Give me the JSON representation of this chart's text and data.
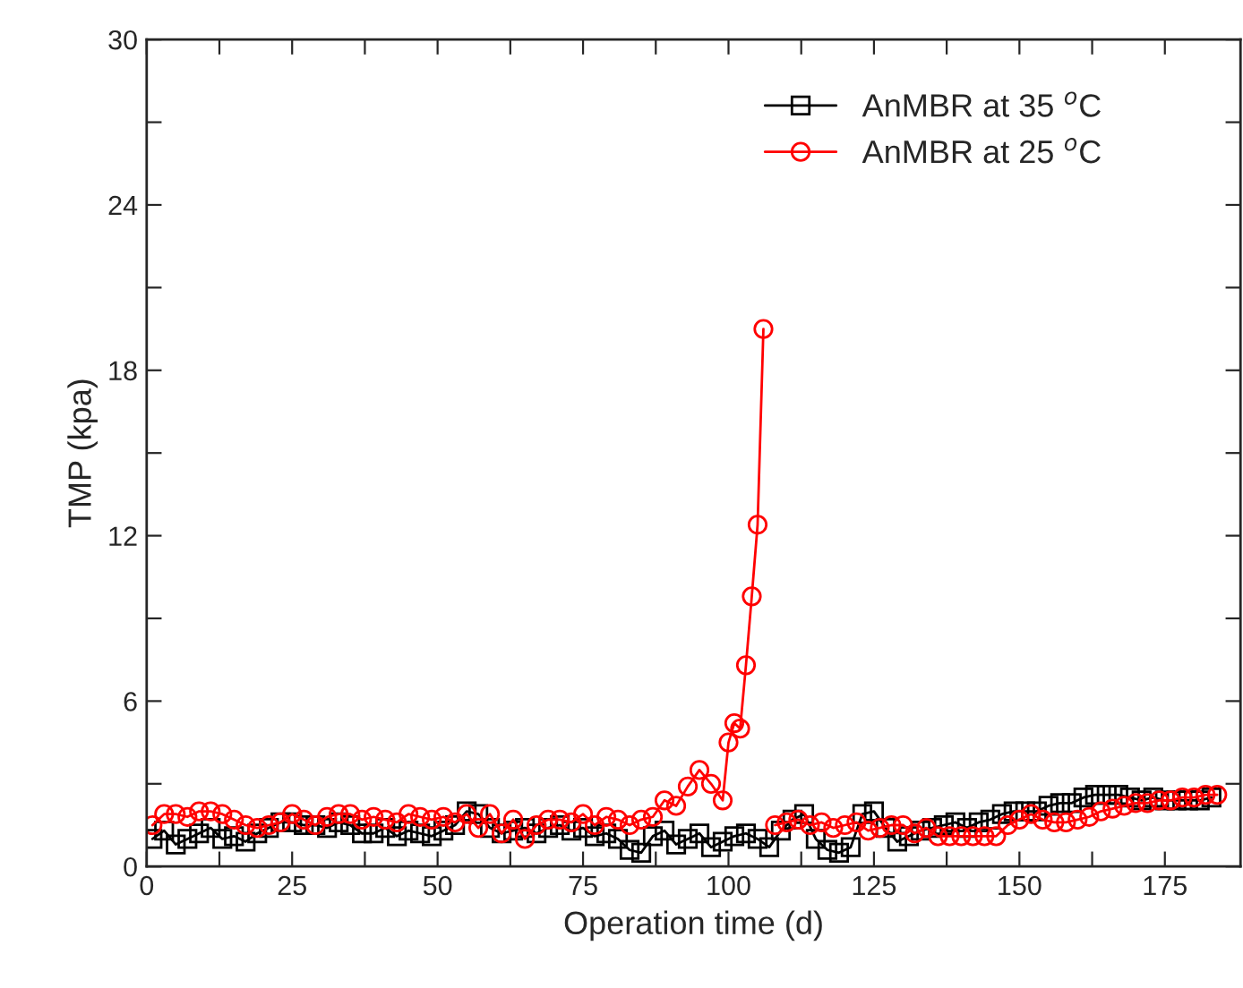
{
  "chart_data": {
    "type": "line",
    "xlabel": "Operation time (d)",
    "ylabel": "TMP (kpa)",
    "xlim": [
      0,
      188
    ],
    "ylim": [
      0,
      30
    ],
    "xticks": [
      0,
      {
        "value": 12.5,
        "label": null
      },
      25,
      {
        "value": 37.5,
        "label": null
      },
      50,
      {
        "value": 62.5,
        "label": null
      },
      75,
      {
        "value": 87.5,
        "label": null
      },
      100,
      {
        "value": 112.5,
        "label": null
      },
      125,
      {
        "value": 137.5,
        "label": null
      },
      150,
      {
        "value": 162.5,
        "label": null
      },
      175
    ],
    "yticks": [
      0,
      {
        "value": 3,
        "label": null
      },
      6,
      {
        "value": 9,
        "label": null
      },
      12,
      {
        "value": 15,
        "label": null
      },
      18,
      {
        "value": 21,
        "label": null
      },
      24,
      {
        "value": 27,
        "label": null
      },
      30
    ],
    "grid": false,
    "legend": "top right",
    "tick_labels": "xy",
    "series": [
      {
        "name": "AnMBR at 35 $^{o}$C",
        "color": "#000000",
        "marker": "square",
        "x": [
          1,
          3,
          5,
          7,
          9,
          11,
          13,
          15,
          17,
          19,
          21,
          23,
          25,
          27,
          29,
          31,
          33,
          35,
          37,
          39,
          41,
          43,
          45,
          47,
          49,
          51,
          53,
          55,
          57,
          59,
          61,
          63,
          65,
          67,
          69,
          71,
          73,
          75,
          77,
          79,
          81,
          83,
          85,
          87,
          89,
          91,
          93,
          95,
          97,
          99,
          101,
          103,
          105,
          107,
          109,
          111,
          113,
          115,
          117,
          119,
          121,
          123,
          125,
          127,
          129,
          131,
          133,
          135,
          137,
          139,
          141,
          143,
          145,
          147,
          149,
          151,
          153,
          155,
          157,
          159,
          161,
          163,
          165,
          167,
          169,
          171,
          173,
          175,
          177,
          179,
          181,
          183
        ],
        "values": [
          1.0,
          1.3,
          0.8,
          1.0,
          1.2,
          1.4,
          1.0,
          1.1,
          0.9,
          1.2,
          1.4,
          1.6,
          1.6,
          1.5,
          1.5,
          1.4,
          1.6,
          1.5,
          1.2,
          1.2,
          1.4,
          1.1,
          1.3,
          1.2,
          1.1,
          1.3,
          1.5,
          2.0,
          1.9,
          1.4,
          1.2,
          1.3,
          1.4,
          1.2,
          1.4,
          1.5,
          1.3,
          1.4,
          1.1,
          1.2,
          1.0,
          0.6,
          0.5,
          1.1,
          1.3,
          0.8,
          1.0,
          1.2,
          0.7,
          0.9,
          1.1,
          1.2,
          1.0,
          0.7,
          1.3,
          1.7,
          1.9,
          1.0,
          0.6,
          0.5,
          0.7,
          1.9,
          2.0,
          1.4,
          0.9,
          1.1,
          1.3,
          1.4,
          1.5,
          1.6,
          1.4,
          1.6,
          1.7,
          1.9,
          2.0,
          2.0,
          2.0,
          2.2,
          2.3,
          2.3,
          2.5,
          2.6,
          2.6,
          2.6,
          2.5,
          2.4,
          2.5,
          2.4,
          2.4,
          2.4,
          2.4,
          2.5
        ]
      },
      {
        "name": "AnMBR at 25 $^{o}$C",
        "color": "#ff0000",
        "marker": "circle",
        "x": [
          1,
          3,
          5,
          7,
          9,
          11,
          13,
          15,
          17,
          19,
          21,
          23,
          25,
          27,
          29,
          31,
          33,
          35,
          37,
          39,
          41,
          43,
          45,
          47,
          49,
          51,
          53,
          55,
          57,
          59,
          61,
          63,
          65,
          67,
          69,
          71,
          73,
          75,
          77,
          79,
          81,
          83,
          85,
          87,
          89,
          91,
          93,
          95,
          97,
          99,
          100,
          101,
          102,
          103,
          104,
          105,
          106,
          107,
          108,
          110,
          112,
          114,
          116,
          118,
          120,
          122,
          124,
          126,
          128,
          130,
          132,
          134,
          136,
          138,
          140,
          142,
          144,
          146,
          148,
          150,
          152,
          154,
          156,
          158,
          160,
          162,
          164,
          166,
          168,
          170,
          172,
          174,
          176,
          178,
          180,
          182,
          184
        ],
        "values": [
          1.5,
          1.9,
          1.9,
          1.8,
          2.0,
          2.0,
          1.9,
          1.7,
          1.5,
          1.4,
          1.5,
          1.6,
          1.9,
          1.7,
          1.5,
          1.8,
          1.9,
          1.9,
          1.7,
          1.8,
          1.7,
          1.6,
          1.9,
          1.8,
          1.7,
          1.8,
          1.6,
          1.9,
          1.4,
          1.9,
          1.2,
          1.7,
          1.0,
          1.5,
          1.7,
          1.7,
          1.6,
          1.9,
          1.5,
          1.8,
          1.7,
          1.5,
          1.7,
          1.8,
          2.4,
          2.2,
          2.9,
          3.5,
          3.0,
          2.4,
          4.5,
          5.2,
          5.0,
          7.3,
          9.8,
          12.4,
          19.5,
          null,
          1.5,
          1.6,
          1.7,
          1.5,
          1.6,
          1.4,
          1.5,
          1.6,
          1.3,
          1.4,
          1.5,
          1.5,
          1.2,
          1.4,
          1.1,
          1.1,
          1.1,
          1.1,
          1.1,
          1.1,
          1.5,
          1.7,
          1.9,
          1.7,
          1.6,
          1.6,
          1.7,
          1.8,
          2.0,
          2.1,
          2.2,
          2.3,
          2.3,
          2.4,
          2.4,
          2.5,
          2.5,
          2.6,
          2.6
        ]
      }
    ]
  }
}
